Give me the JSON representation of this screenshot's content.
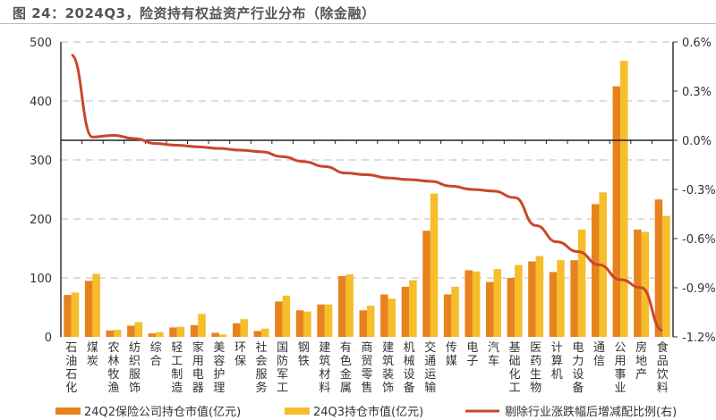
{
  "title": "图 24：2024Q3，险资持有权益资产行业分布（除金融）",
  "chart_data": {
    "type": "bar",
    "title": "图 24：2024Q3，险资持有权益资产行业分布（除金融）",
    "categories": [
      "石油石化",
      "煤炭",
      "农林牧渔",
      "纺织服饰",
      "综合",
      "轻工制造",
      "家用电器",
      "美容护理",
      "环保",
      "社会服务",
      "国防军工",
      "钢铁",
      "建筑材料",
      "有色金属",
      "商贸零售",
      "建筑装饰",
      "机械设备",
      "交通运输",
      "传媒",
      "电子",
      "汽车",
      "基础化工",
      "医药生物",
      "计算机",
      "电力设备",
      "通信",
      "公用事业",
      "房地产",
      "食品饮料"
    ],
    "series": [
      {
        "name": "24Q2保险公司持仓市值(亿元)",
        "type": "bar",
        "axis": "left",
        "color": "#E8821E",
        "values": [
          71,
          95,
          11,
          19,
          6,
          16,
          20,
          7,
          23,
          10,
          60,
          45,
          55,
          103,
          45,
          72,
          85,
          180,
          72,
          113,
          93,
          100,
          128,
          110,
          130,
          225,
          425,
          182,
          233
        ]
      },
      {
        "name": "24Q3持仓市值(亿元)",
        "type": "bar",
        "axis": "left",
        "color": "#F5BE2A",
        "values": [
          75,
          107,
          12,
          25,
          8,
          17,
          39,
          4,
          30,
          14,
          70,
          43,
          55,
          106,
          53,
          65,
          96,
          243,
          85,
          111,
          115,
          122,
          137,
          130,
          182,
          245,
          468,
          178,
          205
        ]
      },
      {
        "name": "剔除行业涨跌幅后增减配比例(右)",
        "type": "line",
        "axis": "right",
        "color": "#C8482A",
        "values": [
          0.52,
          0.02,
          0.03,
          0.01,
          -0.02,
          -0.03,
          -0.04,
          -0.05,
          -0.06,
          -0.07,
          -0.1,
          -0.13,
          -0.16,
          -0.2,
          -0.21,
          -0.23,
          -0.24,
          -0.25,
          -0.28,
          -0.3,
          -0.31,
          -0.35,
          -0.52,
          -0.62,
          -0.68,
          -0.76,
          -0.85,
          -0.9,
          -1.16
        ]
      }
    ],
    "yleft": {
      "range": [
        0,
        500
      ],
      "ticks": [
        "0",
        "100",
        "200",
        "300",
        "400",
        "500"
      ]
    },
    "yright": {
      "range": [
        -1.2,
        0.6
      ],
      "ticks": [
        "0.6%",
        "0.3%",
        "0.0%",
        "-0.3%",
        "-0.6%",
        "-0.9%",
        "-1.2%"
      ]
    },
    "grid": "dashed horizontal",
    "legend": "bottom"
  }
}
